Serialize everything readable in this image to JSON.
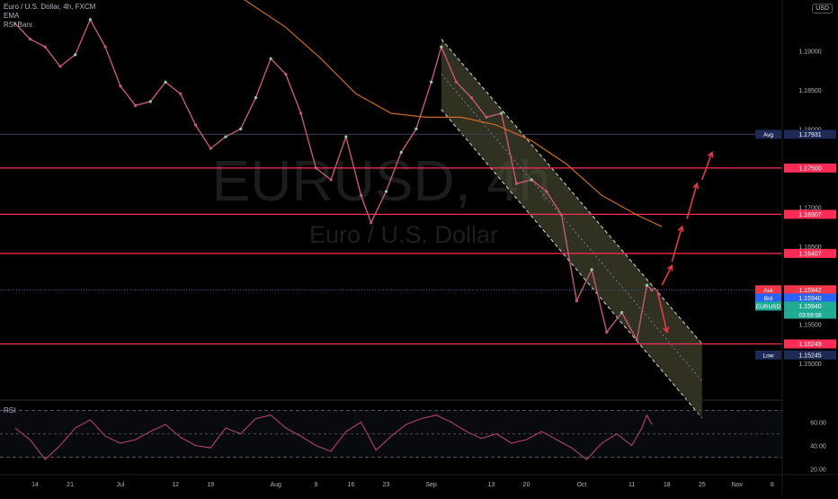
{
  "legend": {
    "symbol_line": "Euro / U.S. Dollar, 4h, FXCM",
    "ema": "EMA",
    "rsi_bars": "RSI Bars"
  },
  "watermark": {
    "symbol": "EURUSD, 4h",
    "name": "Euro / U.S. Dollar"
  },
  "currency_button": "USD",
  "rsi_panel_label": "RSI",
  "colors": {
    "background": "#000000",
    "up_candle": "#8fd19e",
    "down_candle": "#c45a74",
    "ema": "#d06b20",
    "level_line": "#ff2d55",
    "rsi_line": "#b04468",
    "channel_fill": "#5a5a3c",
    "arrow": "#e63946"
  },
  "price_axis": {
    "ticks": [
      "1.19000",
      "1.18500",
      "1.18000",
      "1.17000",
      "1.16500",
      "1.15500",
      "1.15000"
    ],
    "tags": [
      {
        "label": "Avg",
        "value": "1.17931",
        "label_color": "#1e2a55",
        "color": "#1e2a55"
      },
      {
        "label": "",
        "value": "1.17500",
        "color": "#ff2d55"
      },
      {
        "label": "",
        "value": "1.16907",
        "color": "#ff2d55"
      },
      {
        "label": "",
        "value": "1.16407",
        "color": "#ff2d55"
      },
      {
        "label": "Ask",
        "value": "1.15942",
        "label_color": "#f23645",
        "color": "#f23645"
      },
      {
        "label": "Bid",
        "value": "1.15940",
        "label_color": "#2962ff",
        "color": "#2962ff"
      },
      {
        "label": "EURUSD",
        "value": "1.15940",
        "sub": "03:59:58",
        "label_color": "#22ab94",
        "color": "#22ab94"
      },
      {
        "label": "",
        "value": "1.15249",
        "color": "#ff2d55"
      },
      {
        "label": "Low",
        "value": "1.15245",
        "label_color": "#1e2a55",
        "color": "#1e2a55"
      }
    ]
  },
  "rsi_axis": {
    "ticks": [
      "60.00",
      "40.00",
      "20.00"
    ]
  },
  "time_axis": {
    "ticks": [
      "14",
      "21",
      "Jul",
      "12",
      "19",
      "Aug",
      "9",
      "16",
      "23",
      "Sep",
      "13",
      "20",
      "Oct",
      "11",
      "18",
      "25",
      "Nov",
      "8"
    ]
  },
  "chart_data": [
    {
      "type": "line",
      "title": "Euro / U.S. Dollar, 4h, FXCM",
      "x_format": "date",
      "series": [
        {
          "name": "",
          "points": [
            [
              "2021-06-10",
              1.1935
            ],
            [
              "2021-06-13",
              1.1915
            ],
            [
              "2021-06-16",
              1.1905
            ],
            [
              "2021-06-19",
              1.188
            ],
            [
              "2021-06-22",
              1.1895
            ],
            [
              "2021-06-25",
              1.194
            ],
            [
              "2021-06-28",
              1.1905
            ],
            [
              "2021-07-01",
              1.1855
            ],
            [
              "2021-07-04",
              1.183
            ],
            [
              "2021-07-07",
              1.1835
            ],
            [
              "2021-07-10",
              1.186
            ],
            [
              "2021-07-13",
              1.1845
            ],
            [
              "2021-07-16",
              1.1805
            ],
            [
              "2021-07-19",
              1.1775
            ],
            [
              "2021-07-22",
              1.179
            ],
            [
              "2021-07-25",
              1.18
            ],
            [
              "2021-07-28",
              1.184
            ],
            [
              "2021-07-31",
              1.189
            ],
            [
              "2021-08-03",
              1.187
            ],
            [
              "2021-08-06",
              1.182
            ],
            [
              "2021-08-09",
              1.175
            ],
            [
              "2021-08-12",
              1.1735
            ],
            [
              "2021-08-15",
              1.179
            ],
            [
              "2021-08-18",
              1.1715
            ],
            [
              "2021-08-20",
              1.168
            ],
            [
              "2021-08-23",
              1.172
            ],
            [
              "2021-08-26",
              1.177
            ],
            [
              "2021-08-29",
              1.18
            ],
            [
              "2021-09-01",
              1.186
            ],
            [
              "2021-09-03",
              1.1905
            ],
            [
              "2021-09-06",
              1.186
            ],
            [
              "2021-09-09",
              1.184
            ],
            [
              "2021-09-12",
              1.1815
            ],
            [
              "2021-09-15",
              1.182
            ],
            [
              "2021-09-18",
              1.173
            ],
            [
              "2021-09-21",
              1.1735
            ],
            [
              "2021-09-24",
              1.172
            ],
            [
              "2021-09-27",
              1.169
            ],
            [
              "2021-09-30",
              1.158
            ],
            [
              "2021-10-03",
              1.162
            ],
            [
              "2021-10-06",
              1.154
            ],
            [
              "2021-10-09",
              1.1565
            ],
            [
              "2021-10-12",
              1.153
            ],
            [
              "2021-10-14",
              1.16
            ],
            [
              "2021-10-15",
              1.1594
            ]
          ]
        },
        {
          "name": "EMA",
          "points": [
            [
              "2021-07-20",
              1.199
            ],
            [
              "2021-07-27",
              1.196
            ],
            [
              "2021-08-03",
              1.193
            ],
            [
              "2021-08-10",
              1.189
            ],
            [
              "2021-08-17",
              1.1845
            ],
            [
              "2021-08-24",
              1.182
            ],
            [
              "2021-08-31",
              1.1815
            ],
            [
              "2021-09-07",
              1.1815
            ],
            [
              "2021-09-14",
              1.1805
            ],
            [
              "2021-09-21",
              1.1785
            ],
            [
              "2021-09-28",
              1.1755
            ],
            [
              "2021-10-05",
              1.1715
            ],
            [
              "2021-10-12",
              1.169
            ],
            [
              "2021-10-17",
              1.1675
            ]
          ]
        }
      ],
      "horizontal_levels": [
        1.175,
        1.16907,
        1.16407,
        1.15249
      ],
      "channel": {
        "upper": [
          [
            "2021-09-03",
            1.1915
          ],
          [
            "2021-10-25",
            1.1525
          ]
        ],
        "lower": [
          [
            "2021-09-03",
            1.1825
          ],
          [
            "2021-10-25",
            1.143
          ]
        ],
        "start": "2021-09-03",
        "end": "2021-10-25"
      },
      "arrows": [
        {
          "from": [
            "2021-10-16",
            1.1595
          ],
          "to": [
            "2021-10-18",
            1.154
          ]
        },
        {
          "from": [
            "2021-10-17",
            1.16
          ],
          "to": [
            "2021-10-19",
            1.1625
          ]
        },
        {
          "from": [
            "2021-10-19",
            1.163
          ],
          "to": [
            "2021-10-21",
            1.1675
          ]
        },
        {
          "from": [
            "2021-10-22",
            1.1685
          ],
          "to": [
            "2021-10-24",
            1.173
          ]
        },
        {
          "from": [
            "2021-10-25",
            1.1735
          ],
          "to": [
            "2021-10-27",
            1.177
          ]
        }
      ],
      "avg_price": 1.17931,
      "last_price": 1.1594,
      "session_low": 1.15245,
      "ylim": [
        1.1453,
        1.1965
      ],
      "xlim": [
        "2021-06-07",
        "2021-11-10"
      ]
    },
    {
      "type": "line",
      "title": "RSI",
      "x_format": "date",
      "series": [
        {
          "name": "RSI",
          "points": [
            [
              "2021-06-10",
              55
            ],
            [
              "2021-06-13",
              45
            ],
            [
              "2021-06-16",
              28
            ],
            [
              "2021-06-19",
              40
            ],
            [
              "2021-06-22",
              55
            ],
            [
              "2021-06-25",
              62
            ],
            [
              "2021-06-28",
              48
            ],
            [
              "2021-07-01",
              42
            ],
            [
              "2021-07-04",
              45
            ],
            [
              "2021-07-07",
              52
            ],
            [
              "2021-07-10",
              58
            ],
            [
              "2021-07-13",
              47
            ],
            [
              "2021-07-16",
              40
            ],
            [
              "2021-07-19",
              38
            ],
            [
              "2021-07-22",
              55
            ],
            [
              "2021-07-25",
              50
            ],
            [
              "2021-07-28",
              63
            ],
            [
              "2021-07-31",
              66
            ],
            [
              "2021-08-03",
              55
            ],
            [
              "2021-08-06",
              48
            ],
            [
              "2021-08-09",
              40
            ],
            [
              "2021-08-12",
              35
            ],
            [
              "2021-08-15",
              52
            ],
            [
              "2021-08-18",
              60
            ],
            [
              "2021-08-21",
              36
            ],
            [
              "2021-08-24",
              48
            ],
            [
              "2021-08-27",
              58
            ],
            [
              "2021-08-30",
              63
            ],
            [
              "2021-09-02",
              66
            ],
            [
              "2021-09-05",
              60
            ],
            [
              "2021-09-08",
              52
            ],
            [
              "2021-09-11",
              46
            ],
            [
              "2021-09-14",
              50
            ],
            [
              "2021-09-17",
              42
            ],
            [
              "2021-09-20",
              45
            ],
            [
              "2021-09-23",
              52
            ],
            [
              "2021-09-26",
              45
            ],
            [
              "2021-09-29",
              38
            ],
            [
              "2021-10-02",
              28
            ],
            [
              "2021-10-05",
              42
            ],
            [
              "2021-10-08",
              50
            ],
            [
              "2021-10-11",
              40
            ],
            [
              "2021-10-13",
              55
            ],
            [
              "2021-10-14",
              66
            ],
            [
              "2021-10-15",
              58
            ]
          ]
        }
      ],
      "levels": [
        70,
        50,
        30
      ],
      "ylim": [
        15,
        75
      ]
    }
  ]
}
